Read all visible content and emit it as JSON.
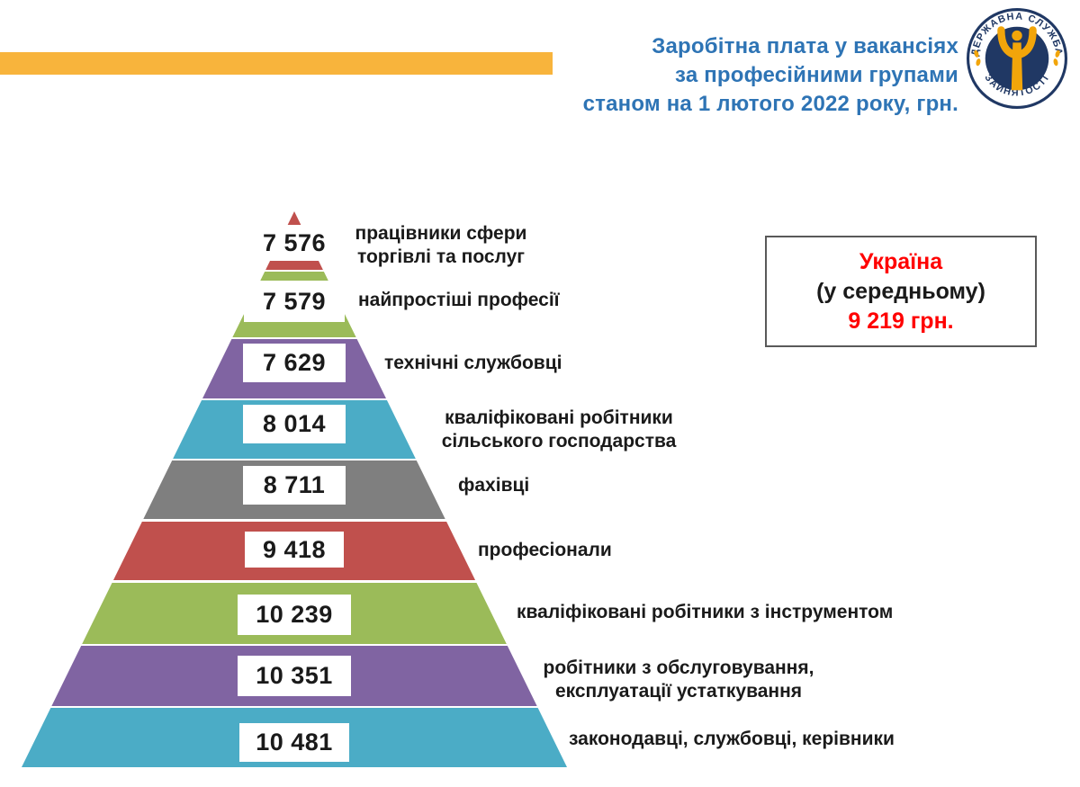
{
  "accent_bar": {
    "color": "#F8B43C"
  },
  "header": {
    "title_lines": [
      "Заробітна плата у вакансіях",
      "за професійними групами",
      "станом на 1 лютого 2022 року, грн."
    ],
    "title_color": "#2E74B5"
  },
  "logo": {
    "ring_text_top": "ДЕРЖАВНА СЛУЖБА",
    "ring_text_bottom": "ЗАЙНЯТОСТІ",
    "navy": "#203864",
    "gold": "#F2A50A"
  },
  "average_box": {
    "title": "Україна",
    "subtitle": "(у середньому)",
    "value": "9 219 грн.",
    "accent_color": "#FF0000",
    "border_color": "#595959"
  },
  "chart_data": {
    "type": "pyramid",
    "title": "Заробітна плата у вакансіях за професійними групами станом на 1 лютого 2022 року, грн.",
    "unit": "грн.",
    "average": {
      "region": "Україна",
      "value": 9219,
      "value_text": "9 219 грн."
    },
    "levels": [
      {
        "label": "працівники сфери торгівлі та послуг",
        "value": 7576,
        "value_text": "7 576",
        "color": "#C0504D"
      },
      {
        "label": "найпростіші професії",
        "value": 7579,
        "value_text": "7 579",
        "color": "#9BBB59"
      },
      {
        "label": "технічні службовці",
        "value": 7629,
        "value_text": "7 629",
        "color": "#8064A2"
      },
      {
        "label": "кваліфіковані робітники сільського господарства",
        "value": 8014,
        "value_text": "8 014",
        "color": "#4BACC6"
      },
      {
        "label": "фахівці",
        "value": 8711,
        "value_text": "8 711",
        "color": "#7F7F7F"
      },
      {
        "label": "професіонали",
        "value": 9418,
        "value_text": "9 418",
        "color": "#C0504D"
      },
      {
        "label": "кваліфіковані робітники з інструментом",
        "value": 10239,
        "value_text": "10 239",
        "color": "#9BBB59"
      },
      {
        "label": "робітники з обслуговування, експлуатації устаткування",
        "value": 10351,
        "value_text": "10 351",
        "color": "#8064A2"
      },
      {
        "label": "законодавці, службовці, керівники",
        "value": 10481,
        "value_text": "10 481",
        "color": "#4BACC6"
      }
    ]
  }
}
